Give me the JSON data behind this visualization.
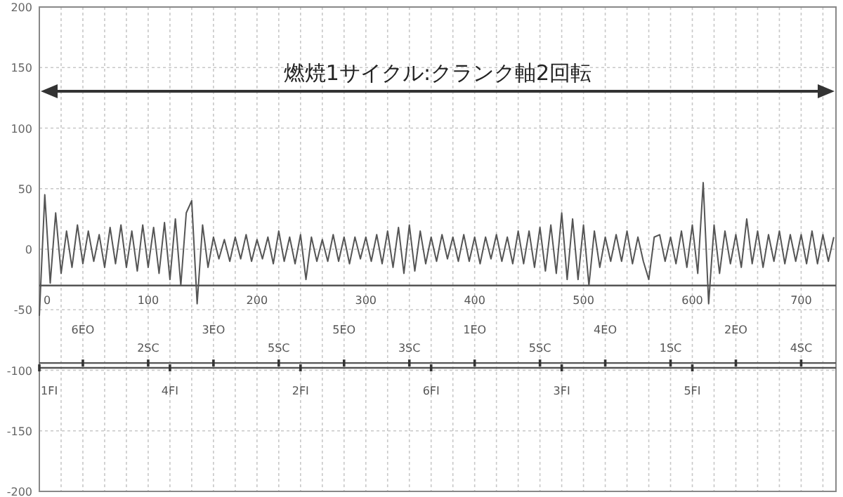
{
  "chart_data": {
    "type": "line",
    "x": [
      0,
      5,
      10,
      15,
      20,
      25,
      30,
      35,
      40,
      45,
      50,
      55,
      60,
      65,
      70,
      75,
      80,
      85,
      90,
      95,
      100,
      105,
      110,
      115,
      120,
      125,
      130,
      135,
      140,
      145,
      150,
      155,
      160,
      165,
      170,
      175,
      180,
      185,
      190,
      195,
      200,
      205,
      210,
      215,
      220,
      225,
      230,
      235,
      240,
      245,
      250,
      255,
      260,
      265,
      270,
      275,
      280,
      285,
      290,
      295,
      300,
      305,
      310,
      315,
      320,
      325,
      330,
      335,
      340,
      345,
      350,
      355,
      360,
      365,
      370,
      375,
      380,
      385,
      390,
      395,
      400,
      405,
      410,
      415,
      420,
      425,
      430,
      435,
      440,
      445,
      450,
      455,
      460,
      465,
      470,
      475,
      480,
      485,
      490,
      495,
      500,
      505,
      510,
      515,
      520,
      525,
      530,
      535,
      540,
      545,
      550,
      555,
      560,
      565,
      570,
      575,
      580,
      585,
      590,
      595,
      600,
      605,
      610,
      615,
      620,
      625,
      630,
      635,
      640,
      645,
      650,
      655,
      660,
      665,
      670,
      675,
      680,
      685,
      690,
      695,
      700,
      705,
      710,
      715,
      720,
      725,
      730
    ],
    "series": [
      {
        "color": "#555555",
        "values": [
          -55,
          45,
          -28,
          30,
          -20,
          15,
          -15,
          20,
          -12,
          15,
          -10,
          12,
          -15,
          18,
          -12,
          20,
          -15,
          15,
          -18,
          20,
          -15,
          18,
          -20,
          22,
          -25,
          25,
          -30,
          30,
          40,
          -45,
          20,
          -15,
          10,
          -8,
          8,
          -10,
          10,
          -8,
          12,
          -10,
          8,
          -8,
          10,
          -12,
          15,
          -10,
          10,
          -12,
          12,
          -25,
          10,
          -10,
          8,
          -10,
          12,
          -10,
          10,
          -12,
          10,
          -8,
          10,
          -10,
          12,
          -12,
          15,
          -15,
          18,
          -20,
          20,
          -18,
          15,
          -12,
          10,
          -10,
          12,
          -8,
          10,
          -10,
          12,
          -10,
          10,
          -12,
          10,
          -8,
          12,
          -10,
          10,
          -12,
          15,
          -12,
          15,
          -15,
          18,
          -18,
          20,
          -20,
          30,
          -25,
          25,
          -25,
          20,
          -30,
          15,
          -15,
          10,
          -10,
          12,
          -10,
          15,
          -12,
          10,
          -10,
          -25,
          10,
          12,
          -10,
          10,
          -12,
          15,
          -15,
          20,
          -20,
          55,
          -45,
          20,
          -20,
          15,
          -12,
          12,
          -15,
          25,
          -12,
          15,
          -15,
          12,
          -10,
          15,
          -12,
          12,
          -10,
          12,
          -12,
          15,
          -12,
          12,
          -10,
          10
        ]
      },
      {
        "type": "scatter",
        "marker": "square",
        "color": "#333333",
        "x": [
          40,
          160,
          280,
          400,
          520,
          640
        ],
        "values": [
          -94,
          -94,
          -94,
          -94,
          -94,
          -94
        ]
      },
      {
        "type": "scatter",
        "marker": "square",
        "color": "#333333",
        "x": [
          100,
          220,
          340,
          460,
          580,
          700
        ],
        "values": [
          -94,
          -94,
          -94,
          -94,
          -94,
          -94
        ]
      },
      {
        "type": "scatter",
        "marker": "square",
        "color": "#333333",
        "x": [
          0,
          120,
          240,
          360,
          480,
          600
        ],
        "values": [
          -98,
          -98,
          -98,
          -98,
          -98,
          -98
        ]
      }
    ],
    "xlim": [
      0,
      732
    ],
    "ylim": [
      -200,
      200
    ],
    "xticks": [
      0,
      {
        "value": 20,
        "label": null
      },
      {
        "value": 40,
        "label": null
      },
      {
        "value": 60,
        "label": null
      },
      {
        "value": 80,
        "label": null
      },
      100,
      {
        "value": 120,
        "label": null
      },
      {
        "value": 140,
        "label": null
      },
      {
        "value": 160,
        "label": null
      },
      {
        "value": 180,
        "label": null
      },
      200,
      {
        "value": 220,
        "label": null
      },
      {
        "value": 240,
        "label": null
      },
      {
        "value": 260,
        "label": null
      },
      {
        "value": 280,
        "label": null
      },
      300,
      {
        "value": 320,
        "label": null
      },
      {
        "value": 340,
        "label": null
      },
      {
        "value": 360,
        "label": null
      },
      {
        "value": 380,
        "label": null
      },
      400,
      {
        "value": 420,
        "label": null
      },
      {
        "value": 440,
        "label": null
      },
      {
        "value": 460,
        "label": null
      },
      {
        "value": 480,
        "label": null
      },
      500,
      {
        "value": 520,
        "label": null
      },
      {
        "value": 540,
        "label": null
      },
      {
        "value": 560,
        "label": null
      },
      {
        "value": 580,
        "label": null
      },
      600,
      {
        "value": 620,
        "label": null
      },
      {
        "value": 640,
        "label": null
      },
      {
        "value": 660,
        "label": null
      },
      {
        "value": 680,
        "label": null
      },
      700,
      {
        "value": 720,
        "label": null
      }
    ],
    "yticks": [
      -200,
      -150,
      -100,
      -50,
      0,
      50,
      100,
      150,
      200
    ],
    "grid": true,
    "line_style": "solid",
    "marker": "none",
    "ref_lines": [
      {
        "axis": "y",
        "value": -30
      },
      {
        "axis": "y",
        "value": -94
      },
      {
        "axis": "y",
        "value": -98
      }
    ],
    "annotations": [
      "燃焼1サイクル:クランク軸2回転",
      {
        "text": "6EO",
        "x": 40,
        "y": -94
      },
      {
        "text": "2SC",
        "x": 100,
        "y": -94
      },
      {
        "text": "3EO",
        "x": 160,
        "y": -94
      },
      {
        "text": "5SC",
        "x": 220,
        "y": -94
      },
      {
        "text": "5EO",
        "x": 280,
        "y": -94
      },
      {
        "text": "3SC",
        "x": 340,
        "y": -94
      },
      {
        "text": "1EO",
        "x": 400,
        "y": -94
      },
      {
        "text": "5SC",
        "x": 460,
        "y": -94
      },
      {
        "text": "4EO",
        "x": 520,
        "y": -94
      },
      {
        "text": "1SC",
        "x": 580,
        "y": -94
      },
      {
        "text": "2EO",
        "x": 640,
        "y": -94
      },
      {
        "text": "4SC",
        "x": 700,
        "y": -94
      },
      {
        "text": "1FI",
        "x": 0,
        "y": -98
      },
      {
        "text": "4FI",
        "x": 120,
        "y": -98
      },
      {
        "text": "2FI",
        "x": 240,
        "y": -98
      },
      {
        "text": "6FI",
        "x": 360,
        "y": -98
      },
      {
        "text": "3FI",
        "x": 480,
        "y": -98
      },
      {
        "text": "5FI",
        "x": 600,
        "y": -98
      }
    ]
  }
}
